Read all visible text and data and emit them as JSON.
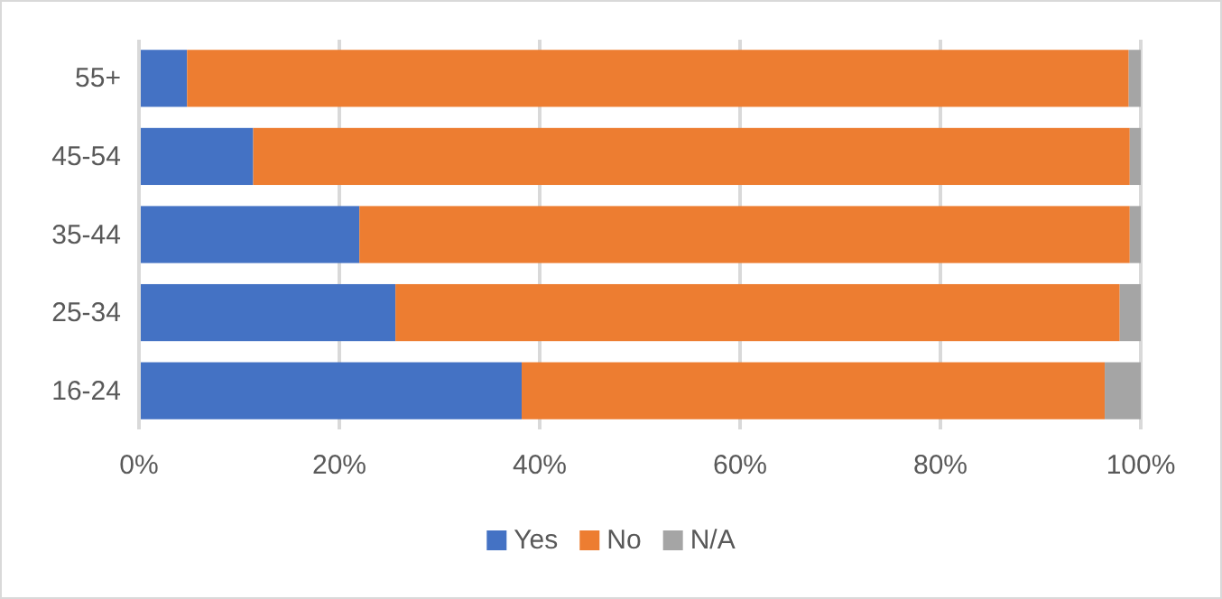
{
  "chart_data": {
    "type": "bar",
    "orientation": "horizontal",
    "stacked": true,
    "categories": [
      "55+",
      "45-54",
      "35-44",
      "25-34",
      "16-24"
    ],
    "series": [
      {
        "name": "Yes",
        "color": "#4472c4",
        "values": [
          4.8,
          11.4,
          22.0,
          25.6,
          38.2
        ]
      },
      {
        "name": "No",
        "color": "#ed7d31",
        "values": [
          94.0,
          87.5,
          76.9,
          72.3,
          58.2
        ]
      },
      {
        "name": "N/A",
        "color": "#a5a5a5",
        "values": [
          1.2,
          1.1,
          1.1,
          2.1,
          3.6
        ]
      }
    ],
    "xlim": [
      0,
      100
    ],
    "xticks": [
      {
        "value": 0,
        "label": "0%"
      },
      {
        "value": 20,
        "label": "20%"
      },
      {
        "value": 40,
        "label": "40%"
      },
      {
        "value": 60,
        "label": "60%"
      },
      {
        "value": 80,
        "label": "80%"
      },
      {
        "value": 100,
        "label": "100%"
      }
    ],
    "grid": "x",
    "legend": "bottom"
  }
}
